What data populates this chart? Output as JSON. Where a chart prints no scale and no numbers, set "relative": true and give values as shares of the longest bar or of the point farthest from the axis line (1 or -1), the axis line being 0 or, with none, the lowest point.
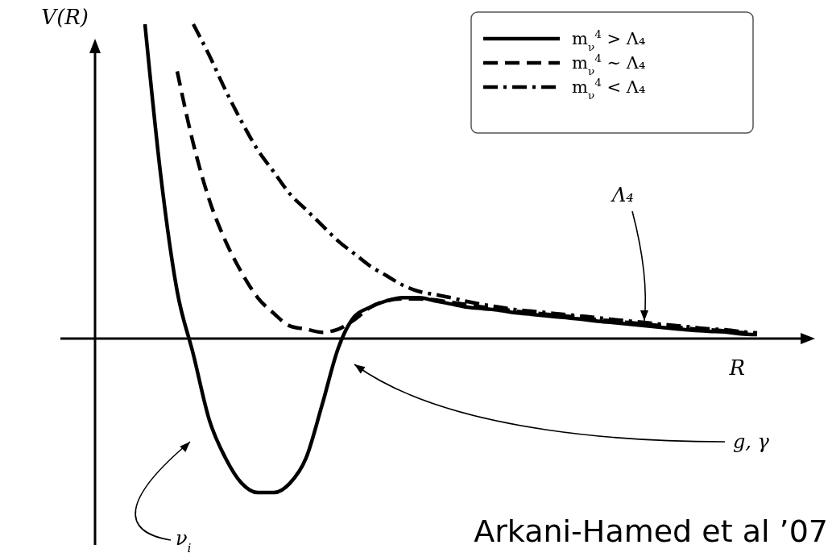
{
  "chart_data": {
    "type": "line",
    "relative": true,
    "xlabel": "R",
    "ylabel": "V(R)",
    "legend": "top right",
    "categories": [
      null,
      null,
      null,
      null,
      null,
      null,
      null,
      null,
      null,
      null,
      null,
      null,
      null,
      null,
      null,
      null,
      null,
      null,
      null,
      null,
      null,
      null,
      null,
      null,
      null,
      null,
      null,
      null,
      null,
      null,
      null,
      null,
      null,
      null,
      null,
      null,
      null,
      null,
      null
    ],
    "series": [
      {
        "name": "m$_{ν}$$^{4}$ > Λ₄",
        "color": "#000000",
        "line_style": "solid",
        "values": [
          1.0,
          0.51,
          0.15,
          -0.05,
          -0.26,
          -0.38,
          -0.46,
          -0.49,
          -0.49,
          -0.46,
          -0.38,
          -0.21,
          -0.03,
          0.07,
          0.1,
          0.12,
          0.13,
          0.13,
          0.12,
          0.11,
          0.1,
          0.095,
          0.09,
          0.082,
          0.077,
          0.072,
          0.067,
          0.062,
          0.056,
          0.051,
          0.046,
          0.041,
          0.036,
          0.031,
          0.026,
          0.023,
          0.021,
          0.015,
          0.013
        ]
      },
      {
        "name": "m$_{ν}$$^{4}$ ∼ Λ₄",
        "color": "#000000",
        "line_style": "dashed",
        "values": [
          null,
          null,
          0.85,
          0.62,
          0.44,
          0.31,
          0.21,
          0.13,
          0.08,
          0.04,
          0.03,
          0.02,
          0.03,
          0.06,
          0.1,
          0.12,
          0.126,
          0.126,
          0.123,
          0.115,
          0.108,
          0.1,
          0.095,
          0.087,
          0.082,
          0.077,
          0.072,
          0.067,
          0.061,
          0.056,
          0.051,
          0.046,
          0.041,
          0.036,
          0.031,
          0.028,
          0.025,
          0.019,
          0.015
        ]
      },
      {
        "name": "m$_{ν}$$^{4}$ < Λ₄",
        "color": "#000000",
        "line_style": "dashdot",
        "values": [
          null,
          null,
          null,
          1.0,
          0.9,
          0.79,
          0.69,
          0.6,
          0.53,
          0.46,
          0.41,
          0.36,
          0.31,
          0.27,
          0.23,
          0.2,
          0.17,
          0.15,
          0.14,
          0.13,
          0.118,
          0.108,
          0.1,
          0.092,
          0.087,
          0.082,
          0.077,
          0.072,
          0.067,
          0.061,
          0.056,
          0.051,
          0.046,
          0.041,
          0.036,
          0.031,
          0.028,
          0.022,
          0.018
        ]
      }
    ],
    "annotations": [
      "Λ₄",
      "g, γ",
      "ν$_{i}$",
      "Arkani-Hamed et al ’07"
    ]
  }
}
